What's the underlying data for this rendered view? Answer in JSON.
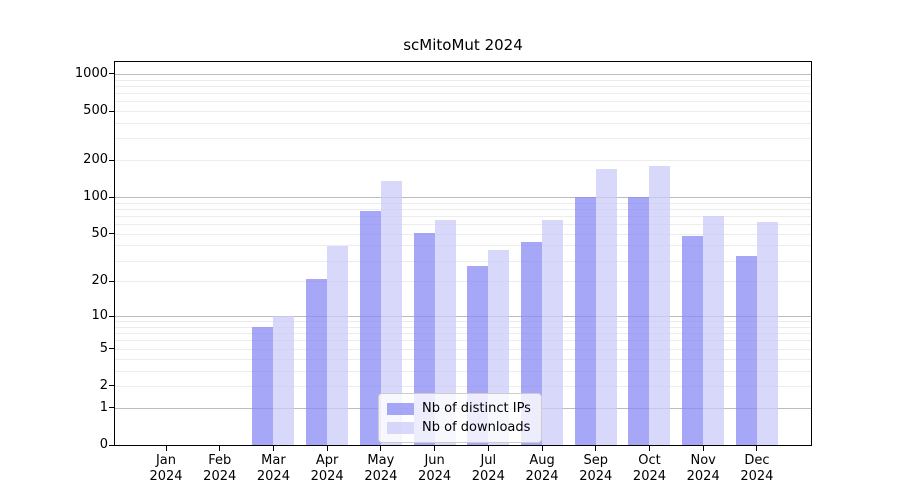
{
  "title": "scMitoMut 2024",
  "colors": {
    "ips_bar": "#8a8af6",
    "downloads_bar": "#cbcbf8",
    "bar_alpha": 0.75,
    "grid_minor": "#ececec",
    "grid_major": "#bcbcbc",
    "axis": "#000000",
    "legend_border": "#cccccc"
  },
  "legend": {
    "items": [
      {
        "label": "Nb of distinct IPs",
        "series": "ips"
      },
      {
        "label": "Nb of downloads",
        "series": "downloads"
      }
    ]
  },
  "y_axis": {
    "tick_values": [
      0,
      1,
      2,
      5,
      10,
      20,
      50,
      100,
      200,
      500,
      1000
    ],
    "tick_labels": [
      "0",
      "1",
      "2",
      "5",
      "10",
      "20",
      "50",
      "100",
      "200",
      "500",
      "1000"
    ]
  },
  "x_axis": {
    "year_line": "2024"
  },
  "chart_data": {
    "type": "bar",
    "title": "scMitoMut 2024",
    "categories": [
      "Jan",
      "Feb",
      "Mar",
      "Apr",
      "May",
      "Jun",
      "Jul",
      "Aug",
      "Sep",
      "Oct",
      "Nov",
      "Dec"
    ],
    "category_year": "2024",
    "series": [
      {
        "name": "Nb of distinct IPs",
        "color": "#8a8af6",
        "values": [
          0,
          0,
          8,
          21,
          77,
          51,
          27,
          43,
          100,
          101,
          48,
          33
        ]
      },
      {
        "name": "Nb of downloads",
        "color": "#cbcbf8",
        "values": [
          0,
          0,
          10,
          40,
          135,
          65,
          37,
          65,
          170,
          180,
          70,
          62
        ]
      }
    ],
    "xlabel": "",
    "ylabel": "",
    "yscale": "log1p",
    "ylim": [
      0,
      1260
    ],
    "y_ticks": [
      0,
      1,
      2,
      5,
      10,
      20,
      50,
      100,
      200,
      500,
      1000
    ],
    "grid": "horizontal",
    "legend_position": "lower center inside"
  }
}
